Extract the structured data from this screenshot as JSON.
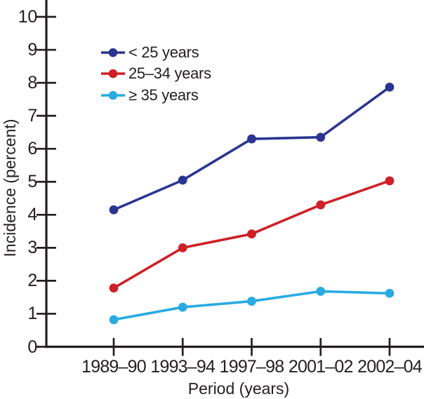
{
  "figure": {
    "background": "#ffffff",
    "text_color": "#231f20",
    "axis_color": "#231f20"
  },
  "chart_data": {
    "type": "line",
    "title": "",
    "xlabel": "Period (years)",
    "ylabel": "Incidence (percent)",
    "categories": [
      "1989–90",
      "1993–94",
      "1997–98",
      "2001–02",
      "2002–04"
    ],
    "y_ticks": [
      0,
      1,
      2,
      3,
      4,
      5,
      6,
      7,
      8,
      9,
      10
    ],
    "ylim": [
      0,
      10.5
    ],
    "grid": false,
    "legend_position": "top-left-inside",
    "marker": "filled-circle",
    "series": [
      {
        "name": "< 25 years",
        "color": "#2b3591",
        "values": [
          4.15,
          5.05,
          6.3,
          6.35,
          7.87
        ]
      },
      {
        "name": "25–34 years",
        "color": "#ce2027",
        "values": [
          1.78,
          3.0,
          3.42,
          4.3,
          5.03
        ]
      },
      {
        "name": "≥ 35 years",
        "color": "#29abe2",
        "values": [
          0.82,
          1.2,
          1.38,
          1.68,
          1.62
        ]
      }
    ]
  }
}
